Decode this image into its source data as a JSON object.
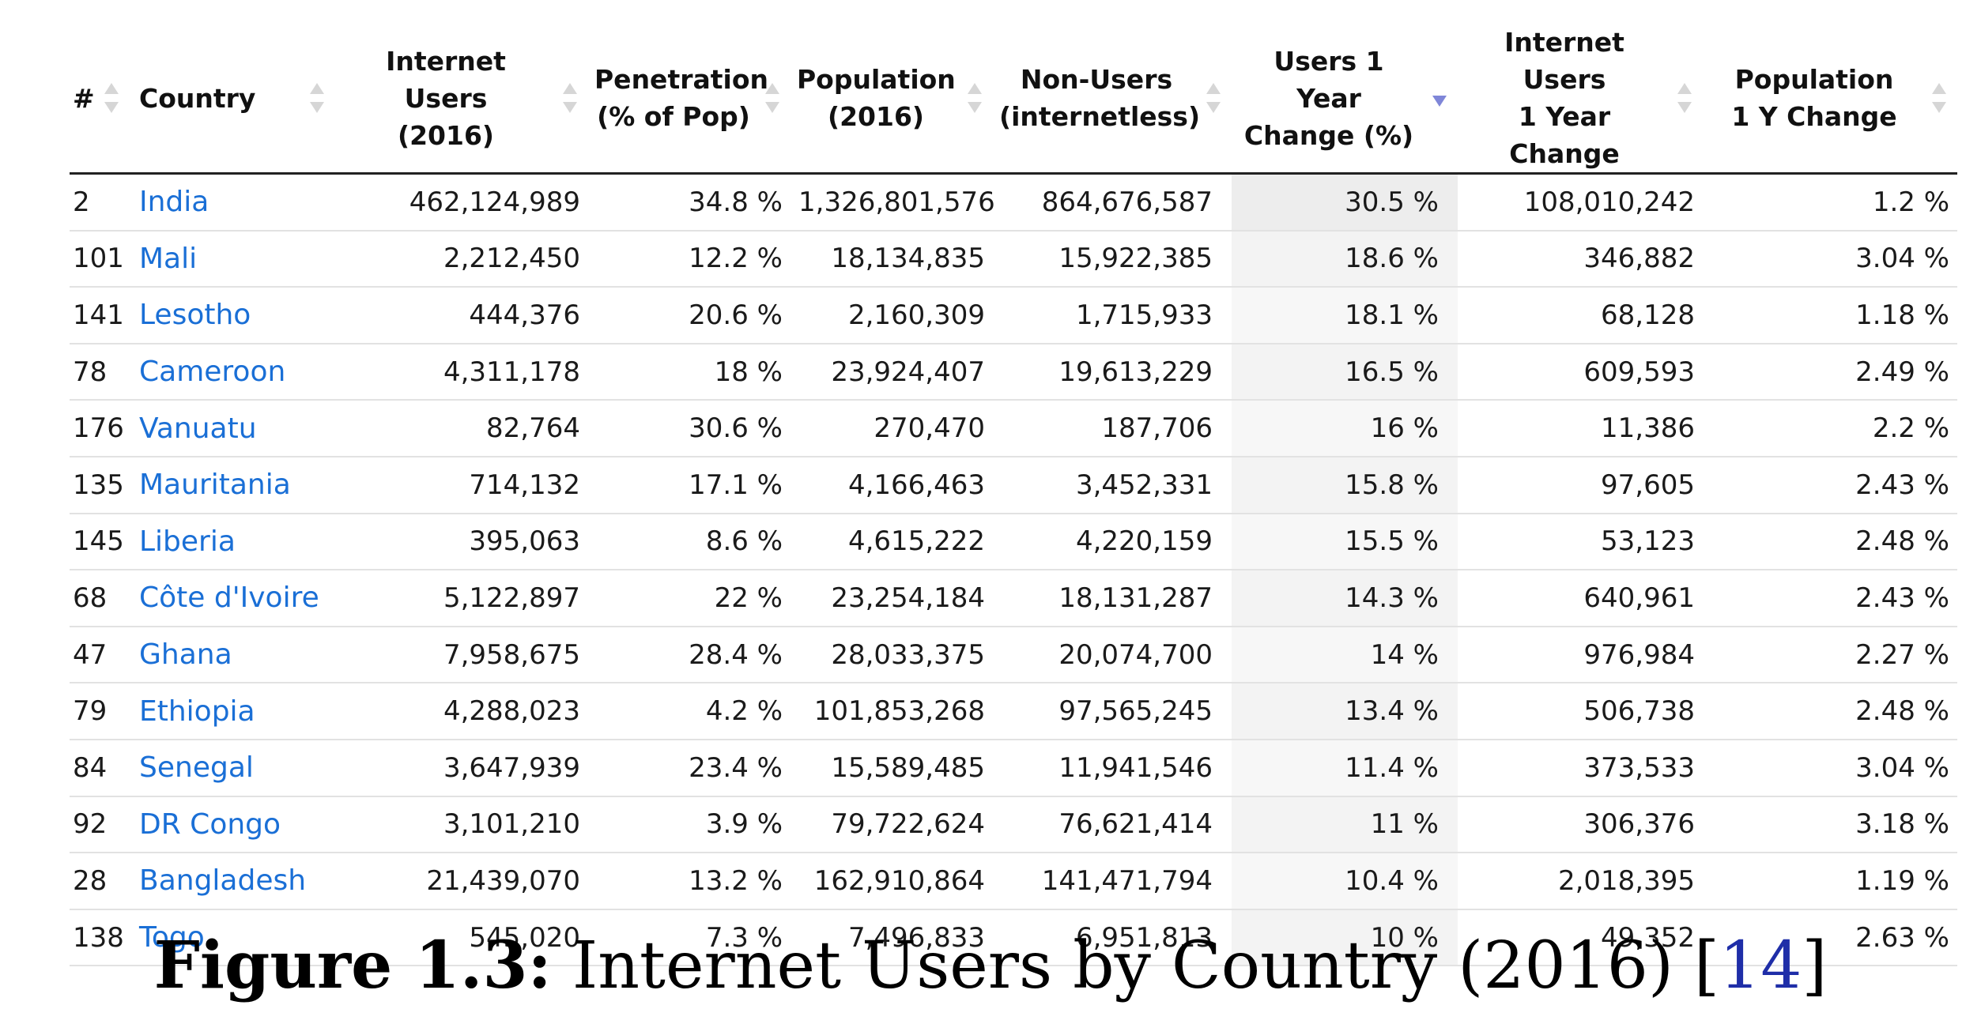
{
  "table": {
    "headers": [
      {
        "line1": "#",
        "line2": ""
      },
      {
        "line1": "Country",
        "line2": ""
      },
      {
        "line1": "Internet Users",
        "line2": "(2016)"
      },
      {
        "line1": "Penetration",
        "line2": "(% of Pop)"
      },
      {
        "line1": "Population",
        "line2": "(2016)"
      },
      {
        "line1": "Non-Users",
        "line2": "(internetless)"
      },
      {
        "line1": "Users 1 Year",
        "line2": "Change (%)"
      },
      {
        "line1": "Internet Users",
        "line2": "1 Year Change"
      },
      {
        "line1": "Population",
        "line2": "1 Y Change"
      }
    ],
    "sorted_column": "Users 1 Year Change (%)",
    "sort_direction": "descending",
    "rows": [
      [
        "2",
        "India",
        "462,124,989",
        "34.8 %",
        "1,326,801,576",
        "864,676,587",
        "30.5 %",
        "108,010,242",
        "1.2 %"
      ],
      [
        "101",
        "Mali",
        "2,212,450",
        "12.2 %",
        "18,134,835",
        "15,922,385",
        "18.6 %",
        "346,882",
        "3.04 %"
      ],
      [
        "141",
        "Lesotho",
        "444,376",
        "20.6 %",
        "2,160,309",
        "1,715,933",
        "18.1 %",
        "68,128",
        "1.18 %"
      ],
      [
        "78",
        "Cameroon",
        "4,311,178",
        "18 %",
        "23,924,407",
        "19,613,229",
        "16.5 %",
        "609,593",
        "2.49 %"
      ],
      [
        "176",
        "Vanuatu",
        "82,764",
        "30.6 %",
        "270,470",
        "187,706",
        "16 %",
        "11,386",
        "2.2 %"
      ],
      [
        "135",
        "Mauritania",
        "714,132",
        "17.1 %",
        "4,166,463",
        "3,452,331",
        "15.8 %",
        "97,605",
        "2.43 %"
      ],
      [
        "145",
        "Liberia",
        "395,063",
        "8.6 %",
        "4,615,222",
        "4,220,159",
        "15.5 %",
        "53,123",
        "2.48 %"
      ],
      [
        "68",
        "Côte d'Ivoire",
        "5,122,897",
        "22 %",
        "23,254,184",
        "18,131,287",
        "14.3 %",
        "640,961",
        "2.43 %"
      ],
      [
        "47",
        "Ghana",
        "7,958,675",
        "28.4 %",
        "28,033,375",
        "20,074,700",
        "14 %",
        "976,984",
        "2.27 %"
      ],
      [
        "79",
        "Ethiopia",
        "4,288,023",
        "4.2 %",
        "101,853,268",
        "97,565,245",
        "13.4 %",
        "506,738",
        "2.48 %"
      ],
      [
        "84",
        "Senegal",
        "3,647,939",
        "23.4 %",
        "15,589,485",
        "11,941,546",
        "11.4 %",
        "373,533",
        "3.04 %"
      ],
      [
        "92",
        "DR Congo",
        "3,101,210",
        "3.9 %",
        "79,722,624",
        "76,621,414",
        "11 %",
        "306,376",
        "3.18 %"
      ],
      [
        "28",
        "Bangladesh",
        "21,439,070",
        "13.2 %",
        "162,910,864",
        "141,471,794",
        "10.4 %",
        "2,018,395",
        "1.19 %"
      ],
      [
        "138",
        "Togo",
        "545,020",
        "7.3 %",
        "7,496,833",
        "6,951,813",
        "10 %",
        "49,352",
        "2.63 %"
      ]
    ]
  },
  "caption": {
    "label": "Figure 1.3:",
    "text": " Internet Users by Country (2016) ",
    "ref_open": "[",
    "ref": "14",
    "ref_close": "]"
  },
  "colors": {
    "link": "#1a6fd6",
    "sort_active": "#7f86d8",
    "sort_inactive": "#d6d6d6",
    "reference": "#1f2ea8"
  }
}
